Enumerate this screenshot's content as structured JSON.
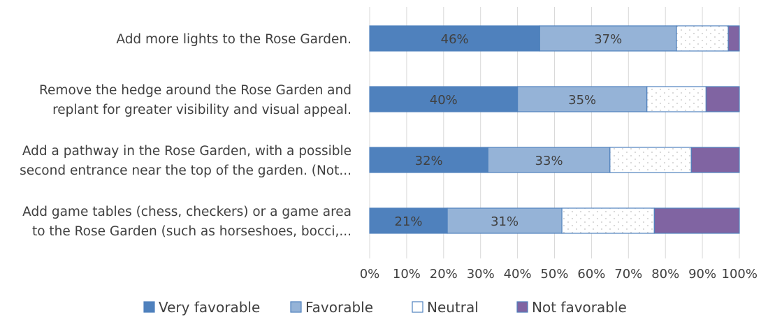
{
  "chart_data": {
    "type": "bar",
    "orientation": "horizontal",
    "stacked": true,
    "categories": [
      [
        "Add more lights to the Rose Garden."
      ],
      [
        "Remove the hedge around the Rose Garden and",
        "replant for greater visibility and visual appeal."
      ],
      [
        "Add a pathway in the Rose Garden, with a possible",
        "second entrance near the top of the garden.  (Not..."
      ],
      [
        "Add game tables (chess, checkers) or a game area",
        "to the Rose Garden (such as horseshoes, bocci,..."
      ]
    ],
    "series": [
      {
        "name": "Very favorable",
        "values": [
          46,
          40,
          32,
          21
        ],
        "labels": [
          "46%",
          "40%",
          "32%",
          "21%"
        ],
        "color": "#4f81bd",
        "pattern": "solid"
      },
      {
        "name": "Favorable",
        "values": [
          37,
          35,
          33,
          31
        ],
        "labels": [
          "37%",
          "35%",
          "33%",
          "31%"
        ],
        "color": "#95b3d7",
        "pattern": "solid"
      },
      {
        "name": "Neutral",
        "values": [
          14,
          16,
          22,
          25
        ],
        "labels": [
          null,
          null,
          null,
          null
        ],
        "color": "#ffffff",
        "pattern": "dotted"
      },
      {
        "name": "Not favorable",
        "values": [
          3,
          9,
          13,
          23
        ],
        "labels": [
          null,
          null,
          null,
          null
        ],
        "color": "#8064a2",
        "pattern": "solid"
      }
    ],
    "xlim": [
      0,
      100
    ],
    "x_ticks": [
      "0%",
      "10%",
      "20%",
      "30%",
      "40%",
      "50%",
      "60%",
      "70%",
      "80%",
      "90%",
      "100%"
    ],
    "grid": true,
    "legend_position": "bottom",
    "colors": {
      "border": "#4f81bd",
      "grid": "#d9d9d9",
      "text": "#404040",
      "dot": "#bfbfbf"
    }
  }
}
